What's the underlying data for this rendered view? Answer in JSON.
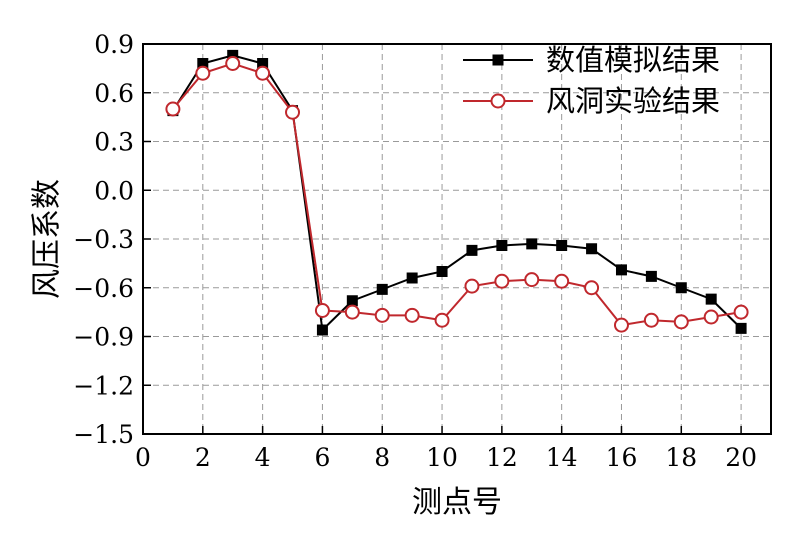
{
  "chart_data": {
    "type": "line",
    "title": "",
    "xlabel": "测点号",
    "ylabel": "风压系数",
    "xlim": [
      0,
      21
    ],
    "ylim": [
      -1.5,
      0.9
    ],
    "x_ticks": [
      0,
      2,
      4,
      6,
      8,
      10,
      12,
      14,
      16,
      18,
      20
    ],
    "y_ticks": [
      0.9,
      0.6,
      0.3,
      0.0,
      -0.3,
      -0.6,
      -0.9,
      -1.2,
      -1.5
    ],
    "x_tick_labels": [
      "0",
      "2",
      "4",
      "6",
      "8",
      "10",
      "12",
      "14",
      "16",
      "18",
      "20"
    ],
    "y_tick_labels": [
      "0.9",
      "0.6",
      "0.3",
      "0.0",
      "−0.3",
      "−0.6",
      "−0.9",
      "−1.2",
      "−1.5"
    ],
    "grid": true,
    "legend_position": "top-right",
    "x": [
      1,
      2,
      3,
      4,
      5,
      6,
      7,
      8,
      9,
      10,
      11,
      12,
      13,
      14,
      15,
      16,
      17,
      18,
      19,
      20
    ],
    "series": [
      {
        "name": "数值模拟结果",
        "marker": "filled-square",
        "color": "#000000",
        "values": [
          0.49,
          0.78,
          0.83,
          0.78,
          0.49,
          -0.86,
          -0.68,
          -0.61,
          -0.54,
          -0.5,
          -0.37,
          -0.34,
          -0.33,
          -0.34,
          -0.36,
          -0.49,
          -0.53,
          -0.6,
          -0.67,
          -0.85
        ]
      },
      {
        "name": "风洞实验结果",
        "marker": "open-circle",
        "color": "#c0282d",
        "values": [
          0.5,
          0.72,
          0.78,
          0.72,
          0.48,
          -0.74,
          -0.75,
          -0.77,
          -0.77,
          -0.8,
          -0.59,
          -0.56,
          -0.55,
          -0.56,
          -0.6,
          -0.83,
          -0.8,
          -0.81,
          -0.78,
          -0.75
        ]
      }
    ]
  }
}
